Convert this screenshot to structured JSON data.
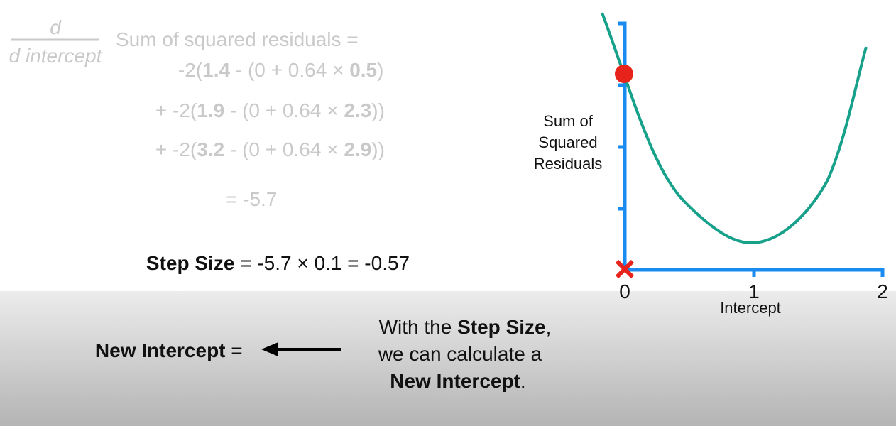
{
  "equation": {
    "numerator": "d",
    "denominator": "d intercept",
    "label": "Sum of squared residuals =",
    "terms": [
      [
        "-2(",
        "1.4",
        " - (0 + 0.64 × ",
        "0.5",
        ")"
      ],
      [
        "+ -2(",
        "1.9",
        " - (0 + 0.64 × ",
        "2.3",
        "))"
      ],
      [
        "+ -2(",
        "3.2",
        " - (0 + 0.64 × ",
        "2.9",
        "))"
      ]
    ],
    "result": "= -5.7"
  },
  "step_size": [
    "Step Size",
    " = -5.7 × 0.1 = -0.57"
  ],
  "new_intercept": [
    "New Intercept",
    " ="
  ],
  "note": [
    [
      "With the ",
      "Step Size",
      ","
    ],
    [
      "we can calculate a"
    ],
    [
      "New Intercept",
      "."
    ]
  ],
  "graph": {
    "y_label": [
      "Sum of",
      "Squared",
      "Residuals"
    ],
    "x_label": "Intercept",
    "x_ticks": [
      "0",
      "1",
      "2"
    ]
  }
}
